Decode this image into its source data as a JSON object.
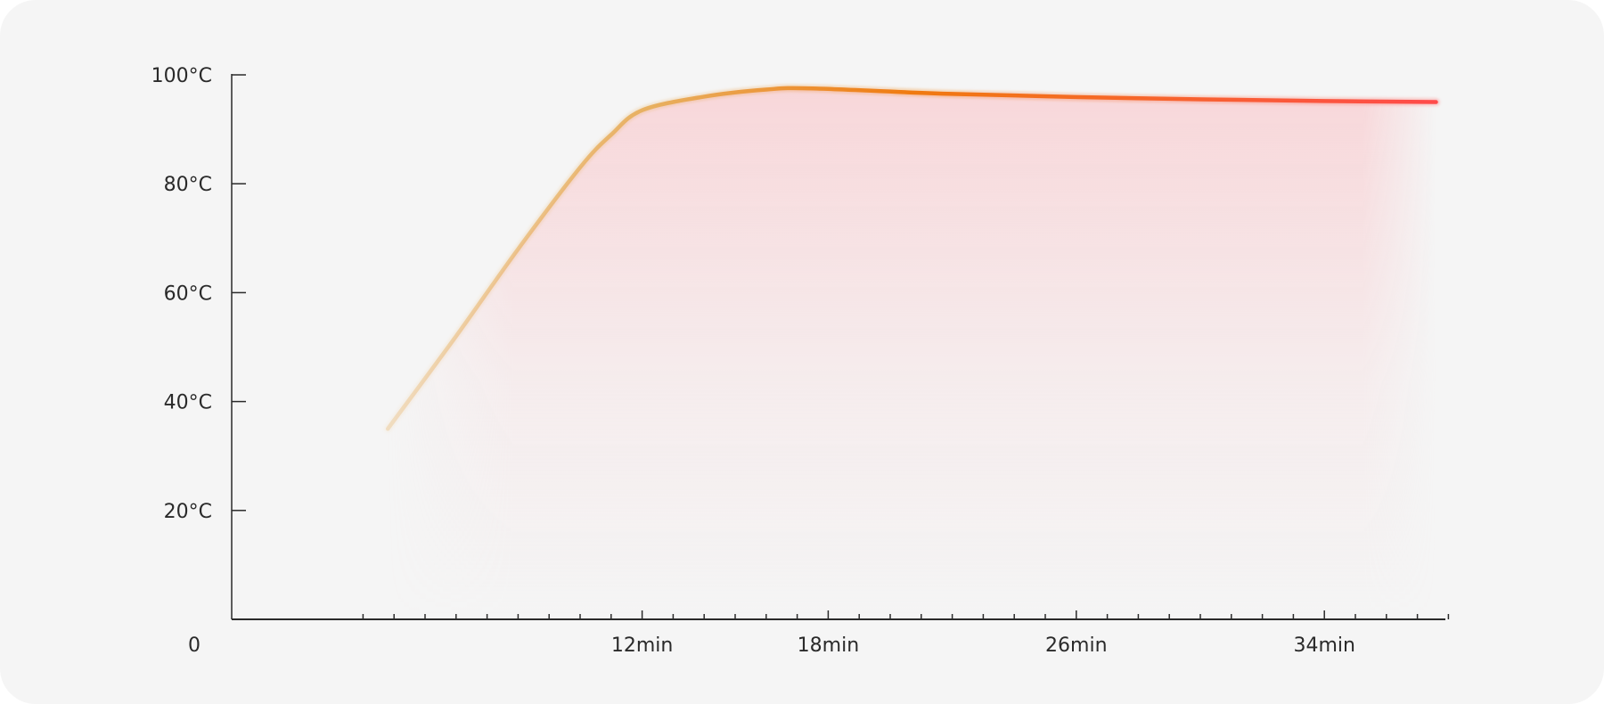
{
  "chart_data": {
    "type": "line",
    "title": "",
    "xlabel": "",
    "ylabel": "",
    "y_ticks": [
      {
        "value": 20,
        "label": "20°C"
      },
      {
        "value": 40,
        "label": "40°C"
      },
      {
        "value": 60,
        "label": "60°C"
      },
      {
        "value": 80,
        "label": "80°C"
      },
      {
        "value": 100,
        "label": "100°C"
      }
    ],
    "origin_label": "0",
    "x_ticks": [
      {
        "value": 12,
        "label": "12min"
      },
      {
        "value": 18,
        "label": "18min"
      },
      {
        "value": 26,
        "label": "26min"
      },
      {
        "value": 34,
        "label": "34min"
      }
    ],
    "x_minor_tick_interval_min": 1,
    "xlim": [
      3,
      38
    ],
    "ylim": [
      0,
      100
    ],
    "grid": false,
    "series": [
      {
        "x": [
          3.8,
          6,
          8,
          10,
          11,
          12,
          14,
          16,
          17.5,
          22,
          28,
          34,
          37.6
        ],
        "y": [
          35,
          52,
          68,
          83,
          89,
          93.5,
          96,
          97.3,
          97.5,
          96.5,
          95.7,
          95.2,
          95
        ]
      }
    ],
    "colors": {
      "line_start": "#e8b060",
      "line_mid": "#f07a10",
      "line_end": "#ff4b4b",
      "fill": "#f8d3d6",
      "axis": "#2a2a2a"
    }
  }
}
